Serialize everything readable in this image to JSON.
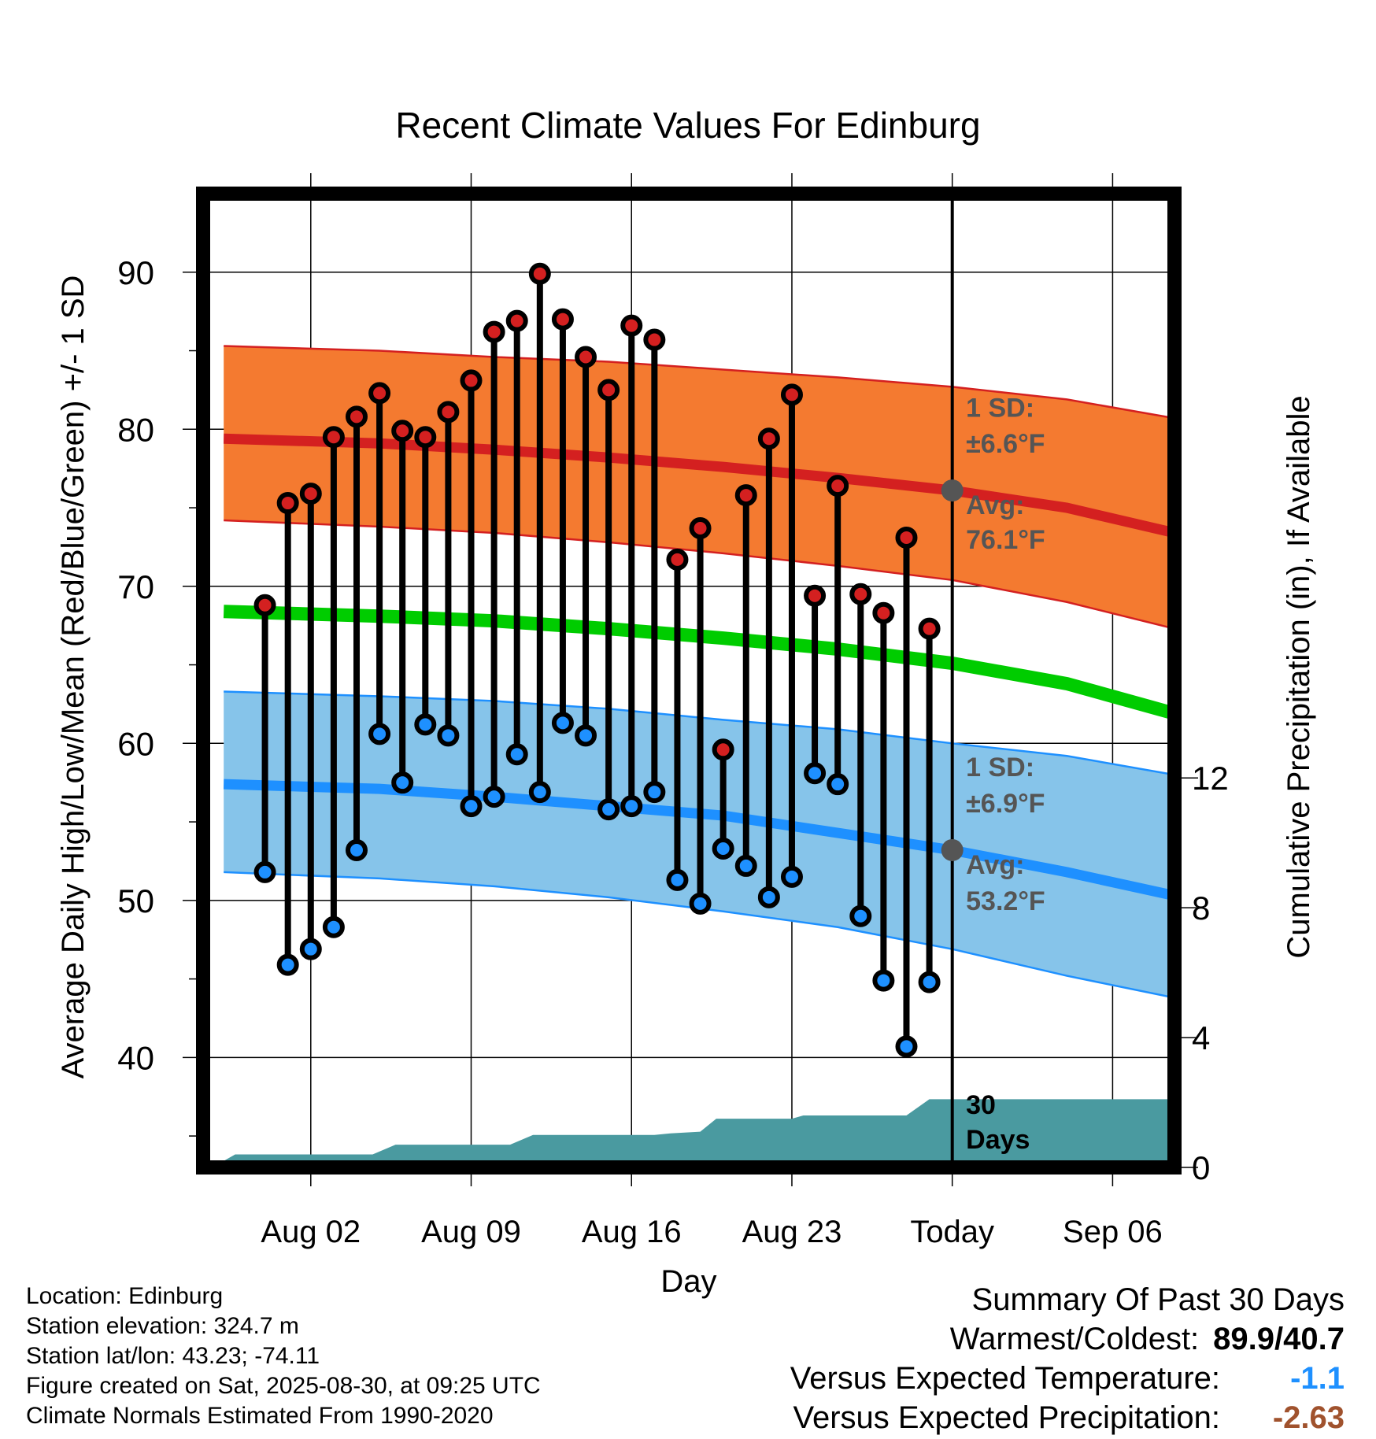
{
  "chart_data": {
    "type": "line",
    "title": "Recent Climate Values For Edinburg",
    "xlabel": "Day",
    "ylabel": "Average Daily High/Low/Mean (Red/Blue/Green) +/- 1 SD",
    "y2label": "Cumulative Precipitation (in), If Available",
    "ylim": [
      33,
      95
    ],
    "y2lim": [
      0,
      30
    ],
    "x_range_days": [
      -32.7,
      9.7
    ],
    "x_ticks": [
      {
        "day": -28,
        "label": "Aug 02"
      },
      {
        "day": -21,
        "label": "Aug 09"
      },
      {
        "day": -14,
        "label": "Aug 16"
      },
      {
        "day": -7,
        "label": "Aug 23"
      },
      {
        "day": 0,
        "label": "Today"
      },
      {
        "day": 7,
        "label": "Sep 06"
      }
    ],
    "y_ticks": [
      40,
      50,
      60,
      70,
      80,
      90
    ],
    "y2_ticks": [
      0,
      4,
      8,
      12
    ],
    "grid": true,
    "colors": {
      "high": "#d42020",
      "low": "#1e90ff",
      "mean": "#00cc00",
      "high_band": "#f47a30",
      "low_band": "#86c4ea",
      "precip": "#4a9aa0",
      "stem": "#000000",
      "annotation": "#555555"
    },
    "normals": {
      "days": [
        -31.8,
        -25,
        -20,
        -15,
        -10,
        -5,
        0,
        5,
        9.7
      ],
      "high_mean": [
        79.4,
        79.1,
        78.7,
        78.2,
        77.6,
        76.9,
        76.1,
        75.0,
        73.4
      ],
      "high_upper": [
        85.3,
        85.0,
        84.6,
        84.3,
        83.8,
        83.3,
        82.7,
        81.9,
        80.7
      ],
      "high_lower": [
        74.2,
        73.8,
        73.4,
        72.8,
        72.1,
        71.3,
        70.4,
        69.0,
        67.3
      ],
      "mean": [
        68.4,
        68.1,
        67.8,
        67.3,
        66.7,
        66.0,
        65.1,
        63.8,
        61.9
      ],
      "low_mean": [
        57.4,
        57.1,
        56.6,
        56.0,
        55.4,
        54.3,
        53.2,
        51.8,
        50.3
      ],
      "low_upper": [
        63.3,
        63.0,
        62.7,
        62.2,
        61.5,
        60.9,
        60.0,
        59.2,
        58.0
      ],
      "low_lower": [
        51.8,
        51.4,
        50.9,
        50.2,
        49.3,
        48.3,
        46.9,
        45.2,
        43.8
      ]
    },
    "daily": {
      "days": [
        -30,
        -29,
        -28,
        -27,
        -26,
        -25,
        -24,
        -23,
        -22,
        -21,
        -20,
        -19,
        -18,
        -17,
        -16,
        -15,
        -14,
        -13,
        -12,
        -11,
        -10,
        -9,
        -8,
        -7,
        -6,
        -5,
        -4,
        -3,
        -2,
        -1
      ],
      "high": [
        68.8,
        75.3,
        75.9,
        79.5,
        80.8,
        82.3,
        79.9,
        79.5,
        81.1,
        83.1,
        86.2,
        86.9,
        89.9,
        87.0,
        84.6,
        82.5,
        86.6,
        85.7,
        71.7,
        73.7,
        59.6,
        75.8,
        79.4,
        82.2,
        69.4,
        76.4,
        69.5,
        68.3,
        73.1,
        67.3
      ],
      "low": [
        51.8,
        45.9,
        46.9,
        48.3,
        53.2,
        60.6,
        57.5,
        61.2,
        60.5,
        56.0,
        56.6,
        59.3,
        56.9,
        61.3,
        60.5,
        55.8,
        56.0,
        56.9,
        51.3,
        49.8,
        53.3,
        52.2,
        50.2,
        51.5,
        58.1,
        57.4,
        49.0,
        44.9,
        40.7,
        44.8
      ]
    },
    "precip": {
      "days": [
        -32.3,
        -31.3,
        -25.3,
        -24.3,
        -19.3,
        -18.3,
        -13,
        -12.3,
        -11,
        -10.3,
        -7,
        -6.5,
        -2,
        -1,
        9.7
      ],
      "values": [
        0.0,
        0.4,
        0.4,
        0.7,
        0.7,
        1.0,
        1.0,
        1.05,
        1.1,
        1.5,
        1.5,
        1.6,
        1.6,
        2.1,
        2.1
      ]
    },
    "annotations": [
      {
        "text": "1 SD:",
        "day": 0.6,
        "temp": 80.8
      },
      {
        "text": "±6.6°F",
        "day": 0.6,
        "temp": 78.5
      },
      {
        "text": "Avg:",
        "day": 0.6,
        "temp": 74.6
      },
      {
        "text": "76.1°F",
        "day": 0.6,
        "temp": 72.4
      },
      {
        "text": "1 SD:",
        "day": 0.6,
        "temp": 57.9
      },
      {
        "text": "±6.9°F",
        "day": 0.6,
        "temp": 55.6
      },
      {
        "text": "Avg:",
        "day": 0.6,
        "temp": 51.7
      },
      {
        "text": "53.2°F",
        "day": 0.6,
        "temp": 49.4
      }
    ],
    "today_marker": {
      "day": 0,
      "high_avg": 76.1,
      "low_avg": 53.2
    },
    "days_label": [
      "30",
      "Days"
    ]
  },
  "footer": {
    "location": "Location: Edinburg",
    "elevation": "Station elevation: 324.7 m",
    "latlon": "Station lat/lon: 43.23; -74.11",
    "created": "Figure created on Sat, 2025-08-30, at 09:25 UTC",
    "normals": "Climate Normals Estimated From 1990-2020"
  },
  "summary": {
    "title": "Summary Of Past 30 Days",
    "warm_cold_label": "Warmest/Coldest:",
    "warm_cold_value": "89.9/40.7",
    "temp_label": "Versus Expected Temperature:",
    "temp_value": "-1.1",
    "temp_color": "#1e90ff",
    "precip_label": "Versus Expected Precipitation:",
    "precip_value": "-2.63",
    "precip_color": "#a0522d"
  }
}
